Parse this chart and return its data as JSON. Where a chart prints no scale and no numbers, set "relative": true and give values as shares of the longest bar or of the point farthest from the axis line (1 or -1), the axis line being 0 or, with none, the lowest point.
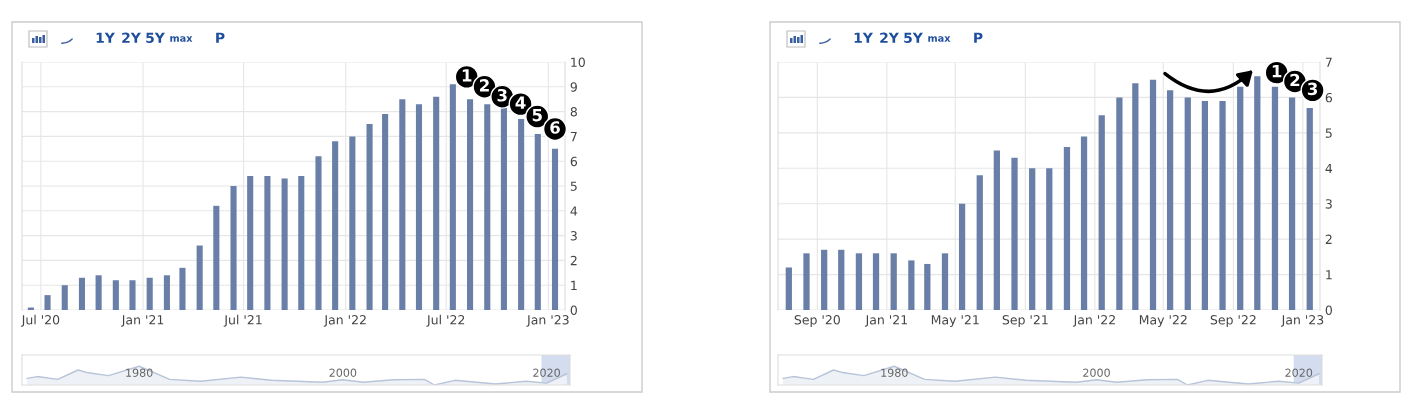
{
  "chart_data": [
    {
      "type": "bar",
      "color": "#6a7fa8",
      "grid": true,
      "x": [
        "2020-06-13",
        "2020-07-13",
        "2020-08-13",
        "2020-09-13",
        "2020-10-13",
        "2020-11-13",
        "2020-12-13",
        "2021-01-13",
        "2021-02-13",
        "2021-03-13",
        "2021-04-13",
        "2021-05-13",
        "2021-06-13",
        "2021-07-13",
        "2021-08-13",
        "2021-09-13",
        "2021-10-13",
        "2021-11-13",
        "2021-12-13",
        "2022-01-13",
        "2022-02-13",
        "2022-03-13",
        "2022-04-13",
        "2022-05-13",
        "2022-06-13",
        "2022-07-13",
        "2022-08-13",
        "2022-09-13",
        "2022-10-13",
        "2022-11-13",
        "2022-12-13",
        "2023-01-13"
      ],
      "values": [
        0.1,
        0.6,
        1.0,
        1.3,
        1.4,
        1.2,
        1.2,
        1.3,
        1.4,
        1.7,
        2.6,
        4.2,
        5.0,
        5.4,
        5.4,
        5.3,
        5.4,
        6.2,
        6.8,
        7.0,
        7.5,
        7.9,
        8.5,
        8.3,
        8.6,
        9.1,
        8.5,
        8.3,
        8.2,
        7.7,
        7.1,
        6.5
      ],
      "xlim": [
        "2020-05-28",
        "2023-01-31"
      ],
      "xticks": [
        {
          "value": "2020-07-01",
          "label": "Jul '20"
        },
        {
          "value": "2021-01-01",
          "label": "Jan '21"
        },
        {
          "value": "2021-07-01",
          "label": "Jul '21"
        },
        {
          "value": "2022-01-01",
          "label": "Jan '22"
        },
        {
          "value": "2022-07-01",
          "label": "Jul '22"
        },
        {
          "value": "2023-01-01",
          "label": "Jan '23"
        }
      ],
      "ylim": [
        0,
        10
      ],
      "yticks": [
        0,
        1,
        2,
        3,
        4,
        5,
        6,
        7,
        8,
        9,
        10
      ],
      "annotations": [
        "1Y",
        "2Y",
        "5Y",
        "max",
        "P",
        {
          "text": "1",
          "x": "2022-08-07",
          "y": 9.4
        },
        {
          "text": "2",
          "x": "2022-09-08",
          "y": 9.0
        },
        {
          "text": "3",
          "x": "2022-10-10",
          "y": 8.6
        },
        {
          "text": "4",
          "x": "2022-11-12",
          "y": 8.3
        },
        {
          "text": "5",
          "x": "2022-12-12",
          "y": 7.8
        },
        {
          "text": "6",
          "x": "2023-01-13",
          "y": 7.3
        }
      ]
    },
    {
      "type": "area",
      "relative": true,
      "color": "#b8c4d8",
      "x": [
        1969,
        1970,
        1972,
        1974,
        1975,
        1977,
        1980,
        1983,
        1986,
        1990,
        1993,
        1998,
        2000,
        2002,
        2005,
        2008,
        2009,
        2011,
        2015,
        2018,
        2020,
        2022
      ],
      "values": [
        0.35,
        0.45,
        0.3,
        0.8,
        0.65,
        0.5,
        1.0,
        0.3,
        0.2,
        0.42,
        0.25,
        0.15,
        0.28,
        0.15,
        0.28,
        0.3,
        0.0,
        0.25,
        0.05,
        0.2,
        0.1,
        0.6
      ],
      "xlim": [
        1968.5,
        2022.3
      ],
      "xticks": [
        1980,
        2000,
        2020
      ],
      "bands": [
        {
          "axis": "x",
          "from": 2019.5,
          "to": 2022.3,
          "color": "#d3ddef"
        }
      ]
    },
    {
      "type": "bar",
      "color": "#6a7fa8",
      "grid": true,
      "x": [
        "2020-07-13",
        "2020-08-13",
        "2020-09-13",
        "2020-10-13",
        "2020-11-13",
        "2020-12-13",
        "2021-01-13",
        "2021-02-13",
        "2021-03-13",
        "2021-04-13",
        "2021-05-13",
        "2021-06-13",
        "2021-07-13",
        "2021-08-13",
        "2021-09-13",
        "2021-10-13",
        "2021-11-13",
        "2021-12-13",
        "2022-01-13",
        "2022-02-13",
        "2022-03-13",
        "2022-04-13",
        "2022-05-13",
        "2022-06-13",
        "2022-07-13",
        "2022-08-13",
        "2022-09-13",
        "2022-10-13",
        "2022-11-13",
        "2022-12-13",
        "2023-01-13"
      ],
      "values": [
        1.2,
        1.6,
        1.7,
        1.7,
        1.6,
        1.6,
        1.6,
        1.4,
        1.3,
        1.6,
        3.0,
        3.8,
        4.5,
        4.3,
        4.0,
        4.0,
        4.6,
        4.9,
        5.5,
        6.0,
        6.4,
        6.5,
        6.2,
        6.0,
        5.9,
        5.9,
        6.3,
        6.6,
        6.3,
        6.0,
        5.7
      ],
      "xlim": [
        "2020-06-24",
        "2023-01-31"
      ],
      "xticks": [
        {
          "value": "2020-09-01",
          "label": "Sep '20"
        },
        {
          "value": "2021-01-01",
          "label": "Jan '21"
        },
        {
          "value": "2021-05-01",
          "label": "May '21"
        },
        {
          "value": "2021-09-01",
          "label": "Sep '21"
        },
        {
          "value": "2022-01-01",
          "label": "Jan '22"
        },
        {
          "value": "2022-05-01",
          "label": "May '22"
        },
        {
          "value": "2022-09-01",
          "label": "Sep '22"
        },
        {
          "value": "2023-01-01",
          "label": "Jan '23"
        }
      ],
      "ylim": [
        0,
        7
      ],
      "yticks": [
        0,
        1,
        2,
        3,
        4,
        5,
        6,
        7
      ],
      "annotations": [
        "1Y",
        "2Y",
        "5Y",
        "max",
        "P",
        {
          "text": "1",
          "x": "2022-11-16",
          "y": 6.7
        },
        {
          "text": "2",
          "x": "2022-12-18",
          "y": 6.45
        },
        {
          "text": "3",
          "x": "2023-01-18",
          "y": 6.2
        }
      ]
    },
    {
      "type": "area",
      "relative": true,
      "color": "#b8c4d8",
      "x": [
        1969,
        1970,
        1972,
        1974,
        1975,
        1977,
        1980,
        1983,
        1986,
        1990,
        1993,
        1998,
        2000,
        2002,
        2005,
        2008,
        2009,
        2011,
        2015,
        2018,
        2020,
        2022
      ],
      "values": [
        0.35,
        0.45,
        0.3,
        0.8,
        0.65,
        0.5,
        1.0,
        0.3,
        0.2,
        0.42,
        0.25,
        0.15,
        0.28,
        0.15,
        0.28,
        0.3,
        0.0,
        0.25,
        0.05,
        0.2,
        0.1,
        0.6
      ],
      "xlim": [
        1968.5,
        2022.3
      ],
      "xticks": [
        1980,
        2000,
        2020
      ],
      "bands": [
        {
          "axis": "x",
          "from": 2019.5,
          "to": 2022.3,
          "color": "#d3ddef"
        }
      ]
    }
  ]
}
